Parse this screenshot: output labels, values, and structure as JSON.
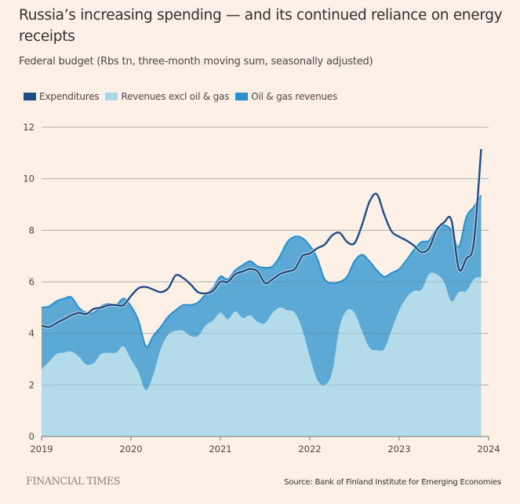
{
  "header": {
    "title": "Russia’s increasing spending — and its continued reliance on energy receipts",
    "subtitle": "Federal budget (Rbs tn, three-month moving sum, seasonally adjusted)"
  },
  "legend": [
    {
      "label": "Expenditures",
      "color": "#1f4e85"
    },
    {
      "label": "Revenues excl oil & gas",
      "color": "#a9d7e8"
    },
    {
      "label": "Oil & gas revenues",
      "color": "#2b8fcc"
    }
  ],
  "footer": {
    "brand": "FINANCIAL TIMES",
    "source": "Source: Bank of Finland Institute for Emerging Economies"
  },
  "chart_data": {
    "type": "area",
    "title": "Russia’s increasing spending — and its continued reliance on energy receipts",
    "subtitle": "Federal budget (Rbs tn, three-month moving sum, seasonally adjusted)",
    "xlabel": "",
    "ylabel": "Rbs tn",
    "x_start": "2019-01",
    "x_frequency": "monthly",
    "xlim": [
      2019,
      2024
    ],
    "ylim": [
      0,
      12
    ],
    "x_ticks": [
      "2019",
      "2020",
      "2021",
      "2022",
      "2023",
      "2024"
    ],
    "y_ticks": [
      "0",
      "2",
      "4",
      "6",
      "8",
      "10",
      "12"
    ],
    "grid": true,
    "legend_position": "top-left",
    "series": [
      {
        "name": "Revenues excl oil & gas",
        "type": "stacked-area",
        "color": "#b3dbe9",
        "values": [
          2.6,
          2.9,
          3.2,
          3.25,
          3.3,
          3.1,
          2.8,
          2.85,
          3.2,
          3.25,
          3.25,
          3.5,
          3.0,
          2.5,
          1.8,
          2.4,
          3.4,
          3.95,
          4.1,
          4.1,
          3.9,
          3.9,
          4.3,
          4.5,
          4.8,
          4.55,
          4.85,
          4.6,
          4.7,
          4.45,
          4.4,
          4.8,
          5.0,
          4.9,
          4.8,
          4.15,
          3.1,
          2.2,
          2.0,
          2.5,
          4.25,
          4.9,
          4.8,
          4.1,
          3.45,
          3.35,
          3.4,
          4.15,
          4.9,
          5.4,
          5.65,
          5.7,
          6.3,
          6.3,
          6.0,
          5.25,
          5.6,
          5.65,
          6.1,
          6.2
        ]
      },
      {
        "name": "Oil & gas revenues",
        "type": "stacked-area",
        "color": "#5ba9d4",
        "values": [
          2.4,
          2.15,
          2.05,
          2.1,
          2.1,
          1.9,
          2.0,
          1.95,
          1.85,
          1.9,
          1.85,
          1.85,
          2.05,
          2.0,
          1.7,
          1.5,
          0.85,
          0.7,
          0.8,
          1.0,
          1.2,
          1.3,
          1.2,
          1.25,
          1.4,
          1.55,
          1.6,
          2.05,
          2.1,
          2.15,
          2.15,
          1.8,
          2.0,
          2.65,
          2.95,
          3.55,
          4.3,
          4.7,
          4.1,
          3.45,
          1.75,
          1.3,
          2.0,
          2.95,
          3.35,
          3.1,
          2.8,
          2.2,
          1.6,
          1.45,
          1.6,
          1.85,
          1.3,
          1.75,
          2.2,
          2.75,
          1.75,
          2.85,
          2.8,
          3.15
        ]
      },
      {
        "name": "Expenditures",
        "type": "line",
        "color": "#1f4e85",
        "values": [
          4.3,
          4.25,
          4.4,
          4.55,
          4.7,
          4.8,
          4.75,
          4.95,
          5.0,
          5.1,
          5.1,
          5.1,
          5.45,
          5.75,
          5.8,
          5.7,
          5.6,
          5.75,
          6.25,
          6.15,
          5.9,
          5.6,
          5.55,
          5.65,
          6.0,
          6.0,
          6.3,
          6.4,
          6.5,
          6.4,
          5.95,
          6.1,
          6.3,
          6.4,
          6.5,
          7.0,
          7.1,
          7.3,
          7.45,
          7.8,
          7.9,
          7.55,
          7.5,
          8.2,
          9.1,
          9.4,
          8.6,
          7.95,
          7.75,
          7.6,
          7.4,
          7.15,
          7.3,
          8.0,
          8.3,
          8.4,
          6.5,
          6.9,
          7.5,
          11.15
        ]
      }
    ]
  }
}
